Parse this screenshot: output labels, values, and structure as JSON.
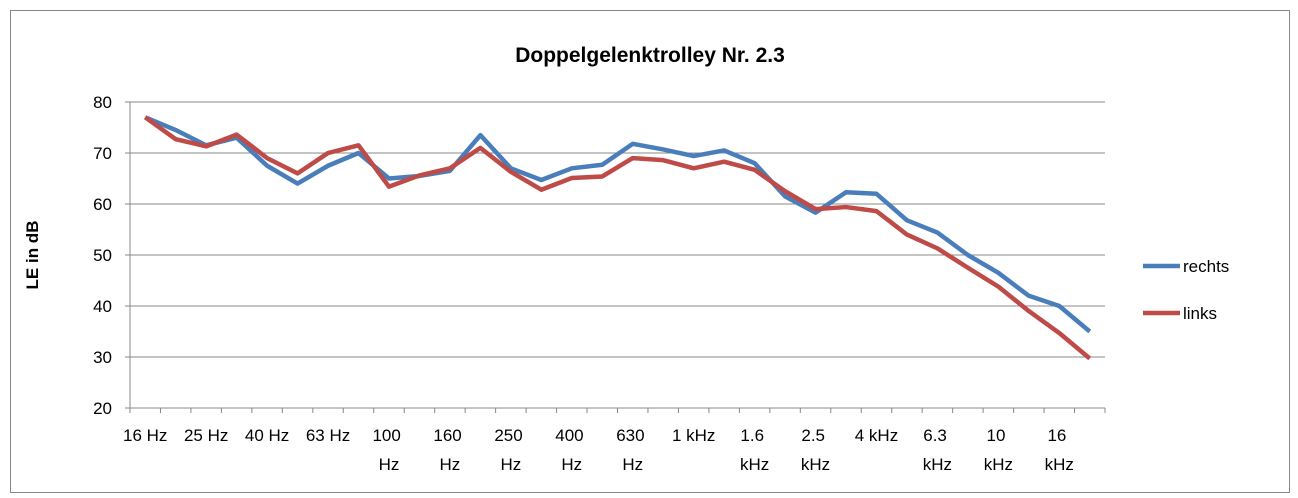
{
  "chart_data": {
    "type": "line",
    "title": "Doppelgelenktrolley Nr. 2.3",
    "y_label": "LE in dB",
    "categories": [
      "16 Hz",
      null,
      "25 Hz",
      null,
      "40 Hz",
      null,
      "63 Hz",
      null,
      "100 Hz",
      null,
      "160 Hz",
      null,
      "250 Hz",
      null,
      "400 Hz",
      null,
      "630 Hz",
      null,
      "1 kHz",
      null,
      "1.6 kHz",
      null,
      "2.5 kHz",
      null,
      "4 kHz",
      null,
      "6.3 kHz",
      null,
      "10 kHz",
      null,
      "16 kHz",
      null
    ],
    "series": [
      {
        "name": "rechts",
        "color": "#4a7ebb",
        "values": [
          77,
          74.5,
          71.5,
          73,
          67.5,
          64,
          67.5,
          70,
          65,
          65.5,
          66.5,
          73.5,
          67,
          64.7,
          67,
          67.7,
          71.8,
          70.7,
          69.4,
          70.5,
          68,
          61.5,
          58.3,
          62.3,
          62,
          56.8,
          54.4,
          50,
          46.5,
          42,
          40,
          35
        ]
      },
      {
        "name": "links",
        "color": "#be4b48",
        "values": [
          77,
          72.7,
          71.3,
          73.6,
          69,
          66,
          70,
          71.5,
          63.4,
          65.6,
          67,
          71,
          66.3,
          62.8,
          65.1,
          65.4,
          69,
          68.6,
          67,
          68.3,
          66.7,
          62.5,
          59,
          59.4,
          58.6,
          54,
          51.3,
          47.5,
          43.8,
          39,
          34.7,
          29.7
        ]
      }
    ],
    "ylim": [
      20,
      80
    ],
    "yticks": [
      20,
      30,
      40,
      50,
      60,
      70,
      80
    ],
    "grid": true,
    "legend": "right"
  }
}
